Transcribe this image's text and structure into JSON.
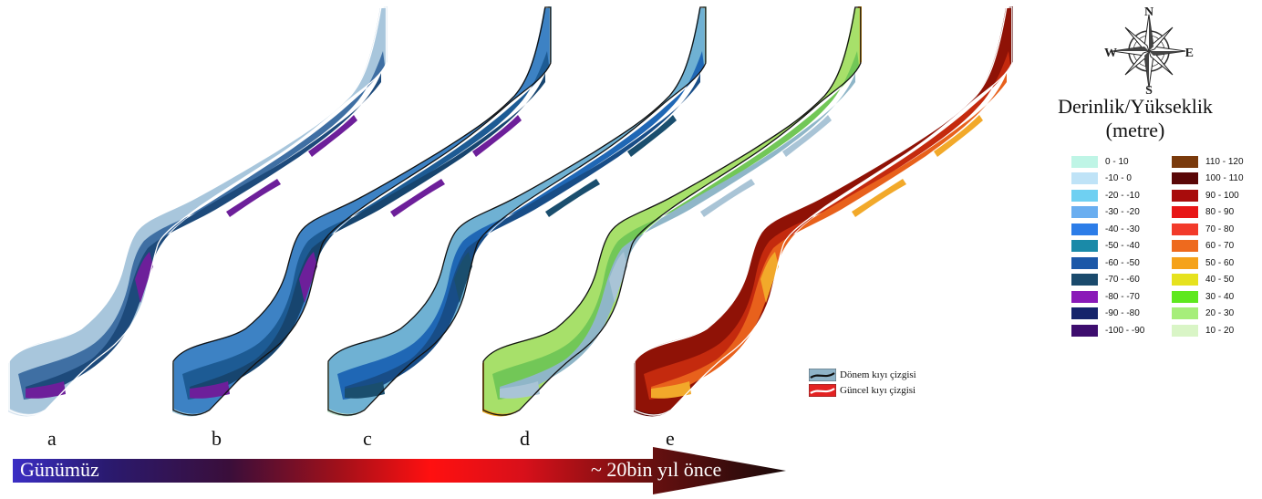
{
  "panels": [
    {
      "letter": "a",
      "palette": [
        "#d7e4ef",
        "#a8c6dc",
        "#3f6fa3",
        "#1d4a7b",
        "#6d1f9a"
      ],
      "current_line": "#ffffff",
      "period_line": "#ffffff"
    },
    {
      "letter": "b",
      "palette": [
        "#9fc9dd",
        "#3d82c4",
        "#1d5b94",
        "#17456f",
        "#6d1f9a"
      ],
      "current_line": "#ffffff",
      "period_line": "#111111"
    },
    {
      "letter": "c",
      "palette": [
        "#bfe0c9",
        "#6fb1d3",
        "#1f67b5",
        "#184d87",
        "#1a4e6e"
      ],
      "current_line": "#ffffff",
      "period_line": "#111111"
    },
    {
      "letter": "d",
      "palette": [
        "#e8a51c",
        "#a7e06a",
        "#72c757",
        "#8fb6c8",
        "#a9c4d6"
      ],
      "current_line": "#ffffff",
      "period_line": "#111111"
    },
    {
      "letter": "e",
      "palette": [
        "#5a0a0a",
        "#8f1206",
        "#c42a0e",
        "#e8611c",
        "#f2a92a"
      ],
      "current_line": "#ffffff",
      "period_line": "#ffffff"
    }
  ],
  "compass": {
    "n": "N",
    "s": "S",
    "e": "E",
    "w": "W"
  },
  "legend": {
    "title_line1": "Derinlik/Yükseklik",
    "title_line2": "(metre)",
    "left_items": [
      {
        "label": "0 - 10",
        "color": "#bff5e6"
      },
      {
        "label": "-10 - 0",
        "color": "#bfe3f7"
      },
      {
        "label": "-20 - -10",
        "color": "#6fd0f2"
      },
      {
        "label": "-30 - -20",
        "color": "#6aaef0"
      },
      {
        "label": "-40 - -30",
        "color": "#2c7de8"
      },
      {
        "label": "-50 - -40",
        "color": "#1a8aa8"
      },
      {
        "label": "-60 - -50",
        "color": "#1c58a8"
      },
      {
        "label": "-70 - -60",
        "color": "#1a4a6c"
      },
      {
        "label": "-80 - -70",
        "color": "#8a1ab8"
      },
      {
        "label": "-90 - -80",
        "color": "#15246b"
      },
      {
        "label": "-100 - -90",
        "color": "#3d0d6e"
      }
    ],
    "right_items": [
      {
        "label": "110 - 120",
        "color": "#7a3a0c"
      },
      {
        "label": "100 - 110",
        "color": "#5a0707"
      },
      {
        "label": "90 - 100",
        "color": "#a80c0c"
      },
      {
        "label": "80 - 90",
        "color": "#e81616"
      },
      {
        "label": "70 - 80",
        "color": "#f23a2a"
      },
      {
        "label": "60 - 70",
        "color": "#ee6a1e"
      },
      {
        "label": "50 - 60",
        "color": "#f5a21a"
      },
      {
        "label": "40 - 50",
        "color": "#e6e21e"
      },
      {
        "label": "30 - 40",
        "color": "#5ee81e"
      },
      {
        "label": "20 - 30",
        "color": "#a6ee7a"
      },
      {
        "label": "10 - 20",
        "color": "#d9f5c6"
      }
    ]
  },
  "line_legend": {
    "period": "Dönem kıyı çizgisi",
    "current": "Güncel kıyı çizgisi"
  },
  "timeline": {
    "start_label": "Günümüz",
    "end_label": "~ 20bin yıl önce"
  }
}
